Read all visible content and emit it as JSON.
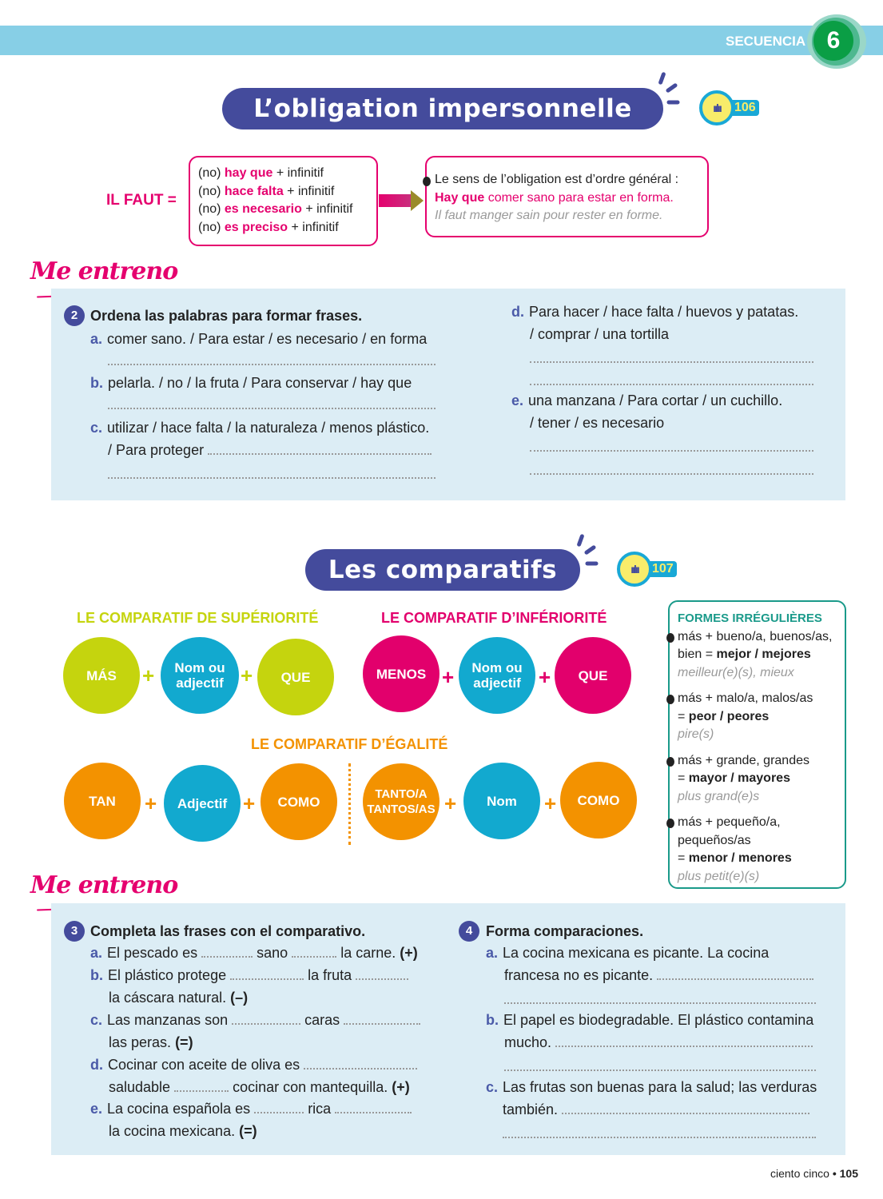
{
  "header": {
    "sequence_label": "SECUENCIA",
    "sequence_number": "6"
  },
  "obligation": {
    "title": "L’obligation impersonnelle",
    "audio_track": "106",
    "il_faut": "IL FAUT =",
    "forms": [
      {
        "pre": "(no)",
        "key": "hay que",
        "post": "+ infinitif"
      },
      {
        "pre": "(no)",
        "key": "hace falta",
        "post": "+ infinitif"
      },
      {
        "pre": "(no)",
        "key": "es necesario",
        "post": "+ infinitif"
      },
      {
        "pre": "(no)",
        "key": "es preciso",
        "post": "+ infinitif"
      }
    ],
    "note": "Le sens de l’obligation est d’ordre général :",
    "example_key": "Hay que",
    "example_rest": "comer sano para estar en forma.",
    "translation": "Il faut manger sain pour rester en forme."
  },
  "me_entreno": "Me entreno",
  "ex2": {
    "number": "2",
    "title": "Ordena las palabras para formar frases.",
    "items": [
      {
        "letter": "a.",
        "lines": [
          "comer sano. / Para estar / es necesario / en forma"
        ]
      },
      {
        "letter": "b.",
        "lines": [
          "pelarla. / no / la fruta / Para conservar / hay que"
        ]
      },
      {
        "letter": "c.",
        "lines": [
          "utilizar / hace falta / la naturaleza / menos plástico.",
          "/ Para proteger"
        ]
      },
      {
        "letter": "d.",
        "lines": [
          "Para hacer / hace falta / huevos y patatas.",
          "/ comprar / una tortilla"
        ]
      },
      {
        "letter": "e.",
        "lines": [
          "una manzana / Para cortar / un cuchillo.",
          "/ tener / es necesario"
        ]
      }
    ]
  },
  "comparatifs": {
    "title": "Les comparatifs",
    "audio_track": "107",
    "superiority": {
      "heading": "LE COMPARATIF DE SUPÉRIORITÉ",
      "items": [
        "MÁS",
        "Nom ou adjectif",
        "QUE"
      ]
    },
    "inferiority": {
      "heading": "LE COMPARATIF D’INFÉRIORITÉ",
      "items": [
        "MENOS",
        "Nom ou adjectif",
        "QUE"
      ]
    },
    "equality": {
      "heading": "LE COMPARATIF D’ÉGALITÉ",
      "items": [
        "TAN",
        "Adjectif",
        "COMO",
        "TANTO/A TANTOS/AS",
        "Nom",
        "COMO"
      ]
    },
    "plus": "+",
    "colors": {
      "superiority": "#c5d40e",
      "inferiority": "#e2006c",
      "equality": "#f39200",
      "middle": "#12a9cf"
    },
    "irregular": {
      "heading": "FORMES IRRÉGULIÈRES",
      "entries": [
        {
          "l1": "más + bueno/a, buenos/as,",
          "l2pre": "bien =",
          "l2b": "mejor / mejores",
          "fr": "meilleur(e)(s), mieux"
        },
        {
          "l1": "más + malo/a, malos/as",
          "l2pre": "=",
          "l2b": "peor / peores",
          "fr": "pire(s)"
        },
        {
          "l1": "más + grande, grandes",
          "l2pre": "=",
          "l2b": "mayor / mayores",
          "fr": "plus grand(e)s"
        },
        {
          "l1": "más + pequeño/a,",
          "l1b": "pequeños/as",
          "l2pre": "=",
          "l2b": "menor / menores",
          "fr": "plus petit(e)(s)"
        }
      ]
    }
  },
  "ex3": {
    "number": "3",
    "title": "Completa las frases con el comparativo.",
    "a": {
      "letter": "a.",
      "p1": "El pescado es",
      "p2": "sano",
      "p3": "la carne.",
      "tag": "(+)"
    },
    "b": {
      "letter": "b.",
      "p1": "El plástico protege",
      "p2": "la fruta",
      "l2": "la cáscara natural.",
      "tag": "(–)"
    },
    "c": {
      "letter": "c.",
      "p1": "Las manzanas son",
      "p2": "caras",
      "l2": "las peras.",
      "tag": "(=)"
    },
    "d": {
      "letter": "d.",
      "p1": "Cocinar con aceite de oliva es",
      "l2a": "saludable",
      "l2b": "cocinar con mantequilla.",
      "tag": "(+)"
    },
    "e": {
      "letter": "e.",
      "p1": "La cocina española es",
      "p2": "rica",
      "l2": "la cocina mexicana.",
      "tag": "(=)"
    }
  },
  "ex4": {
    "number": "4",
    "title": "Forma comparaciones.",
    "items": [
      {
        "letter": "a.",
        "l1": "La cocina mexicana es picante. La cocina",
        "l2": "francesa no es picante."
      },
      {
        "letter": "b.",
        "l1": "El papel es biodegradable. El plástico contamina",
        "l2": "mucho."
      },
      {
        "letter": "c.",
        "l1": "Las frutas son buenas para la salud; las verduras",
        "l2": "también."
      }
    ]
  },
  "footer": {
    "page_words": "ciento cinco",
    "bullet": "•",
    "page_number": "105"
  }
}
